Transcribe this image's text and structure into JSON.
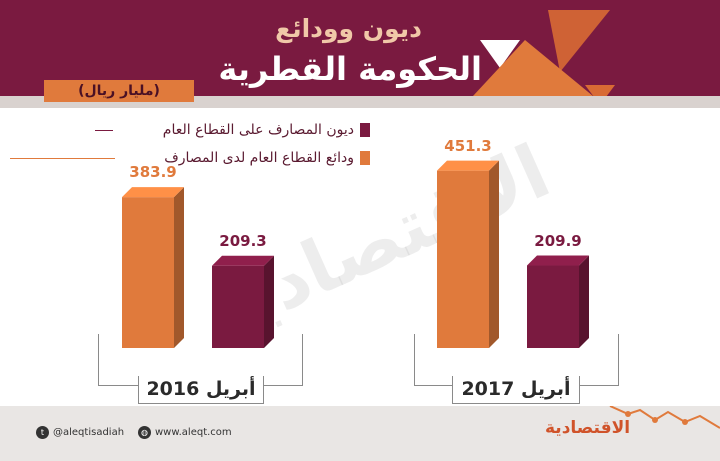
{
  "header": {
    "title_line1": "ديون وودائع",
    "title_line2": "الحكومة القطرية",
    "unit": "(مليار ريال)"
  },
  "colors": {
    "header_bg": "#7a1a40",
    "orange": "#e07a3c",
    "maroon": "#7a1a40"
  },
  "chart_data": {
    "type": "bar",
    "categories": [
      "أبريل 2016",
      "أبريل 2017"
    ],
    "series": [
      {
        "name": "ودائع القطاع العام لدى المصارف",
        "color": "#e07a3c",
        "values": [
          383.9,
          451.3
        ]
      },
      {
        "name": "ديون المصارف على القطاع العام",
        "color": "#7a1a40",
        "values": [
          209.3,
          209.9
        ]
      }
    ],
    "ylim": [
      0,
      460
    ]
  },
  "legend": {
    "debts": "ديون المصارف على القطاع العام",
    "deposits": "ودائع القطاع العام لدى المصارف"
  },
  "footer": {
    "twitter": "@aleqtisadiah",
    "website": "www.aleqt.com",
    "logo": "الاقتصادية",
    "twitter_icon": "twitter-icon",
    "globe_icon": "globe-icon"
  },
  "watermark": "الاقتصادية"
}
